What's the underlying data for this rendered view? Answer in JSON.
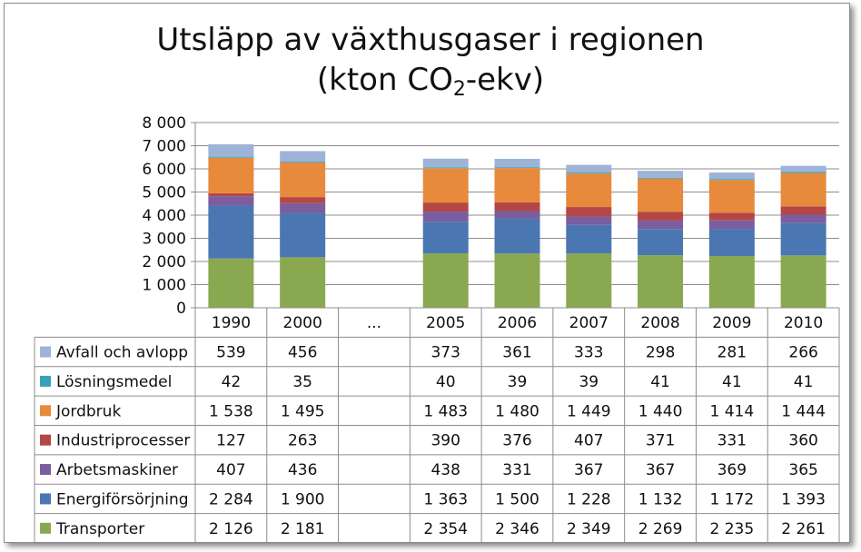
{
  "title": {
    "line1": "Utsläpp av växthusgaser i regionen",
    "line2_prefix": "(kton CO",
    "line2_sub": "2",
    "line2_suffix": "-ekv)"
  },
  "chart_data": {
    "type": "bar",
    "stacked": true,
    "categories": [
      "1990",
      "2000",
      "...",
      "2005",
      "2006",
      "2007",
      "2008",
      "2009",
      "2010"
    ],
    "ylim": [
      0,
      8000
    ],
    "yticks": [
      0,
      1000,
      2000,
      3000,
      4000,
      5000,
      6000,
      7000,
      8000
    ],
    "ytick_labels": [
      "0",
      "1 000",
      "2 000",
      "3 000",
      "4 000",
      "5 000",
      "6 000",
      "7 000",
      "8 000"
    ],
    "gridlines": true,
    "legend": "data-table",
    "series": [
      {
        "name": "Transporter",
        "color": "#8aa84f",
        "values": [
          2126,
          2181,
          null,
          2354,
          2346,
          2349,
          2269,
          2235,
          2261
        ],
        "labels": [
          "2 126",
          "2 181",
          "",
          "2 354",
          "2 346",
          "2 349",
          "2 269",
          "2 235",
          "2 261"
        ]
      },
      {
        "name": "Energiförsörjning",
        "color": "#4a76b2",
        "values": [
          2284,
          1900,
          null,
          1363,
          1500,
          1228,
          1132,
          1172,
          1393
        ],
        "labels": [
          "2 284",
          "1 900",
          "",
          "1 363",
          "1 500",
          "1 228",
          "1 132",
          "1 172",
          "1 393"
        ]
      },
      {
        "name": "Arbetsmaskiner",
        "color": "#7a5ea0",
        "values": [
          407,
          436,
          null,
          438,
          331,
          367,
          367,
          369,
          365
        ],
        "labels": [
          "407",
          "436",
          "",
          "438",
          "331",
          "367",
          "367",
          "369",
          "365"
        ]
      },
      {
        "name": "Industriprocesser",
        "color": "#b44744",
        "values": [
          127,
          263,
          null,
          390,
          376,
          407,
          371,
          331,
          360
        ],
        "labels": [
          "127",
          "263",
          "",
          "390",
          "376",
          "407",
          "371",
          "331",
          "360"
        ]
      },
      {
        "name": "Jordbruk",
        "color": "#e78a3c",
        "values": [
          1538,
          1495,
          null,
          1483,
          1480,
          1449,
          1440,
          1414,
          1444
        ],
        "labels": [
          "1 538",
          "1 495",
          "",
          "1 483",
          "1 480",
          "1 449",
          "1 440",
          "1 414",
          "1 444"
        ]
      },
      {
        "name": "Lösningsmedel",
        "color": "#38a3b8",
        "values": [
          42,
          35,
          null,
          40,
          39,
          39,
          41,
          41,
          41
        ],
        "labels": [
          "42",
          "35",
          "",
          "40",
          "39",
          "39",
          "41",
          "41",
          "41"
        ]
      },
      {
        "name": "Avfall och avlopp",
        "color": "#9db3d8",
        "values": [
          539,
          456,
          null,
          373,
          361,
          333,
          298,
          281,
          266
        ],
        "labels": [
          "539",
          "456",
          "",
          "373",
          "361",
          "333",
          "298",
          "281",
          "266"
        ]
      }
    ]
  }
}
